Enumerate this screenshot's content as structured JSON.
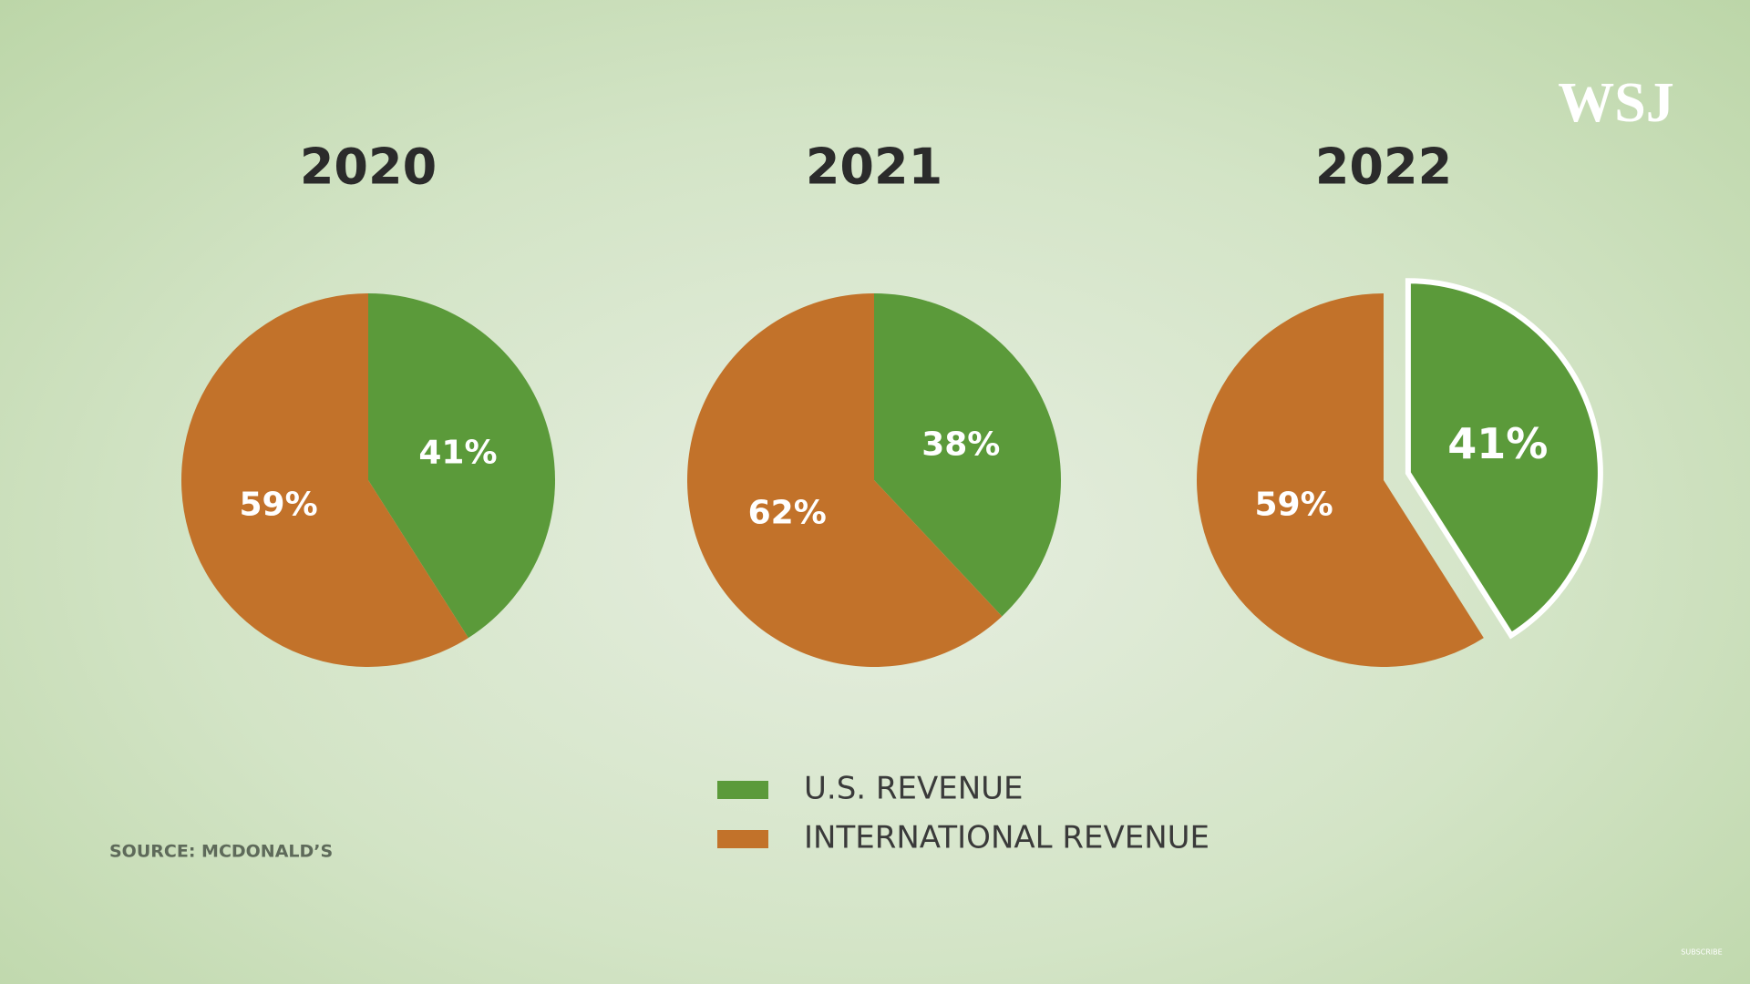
{
  "chart_data": {
    "type": "pie",
    "categories": [
      "2020",
      "2021",
      "2022"
    ],
    "series": [
      {
        "name": "U.S. REVENUE",
        "color": "#5b9a3a",
        "values": [
          41,
          38,
          41
        ],
        "value_labels": [
          "41%",
          "38%",
          "41%"
        ]
      },
      {
        "name": "INTERNATIONAL REVENUE",
        "color": "#c2722a",
        "values": [
          59,
          62,
          59
        ],
        "value_labels": [
          "59%",
          "62%",
          "59%"
        ]
      }
    ],
    "source": "SOURCE: MCDONALD’S"
  },
  "logo": "WSJ",
  "subscribe": "SUBSCRIBE"
}
